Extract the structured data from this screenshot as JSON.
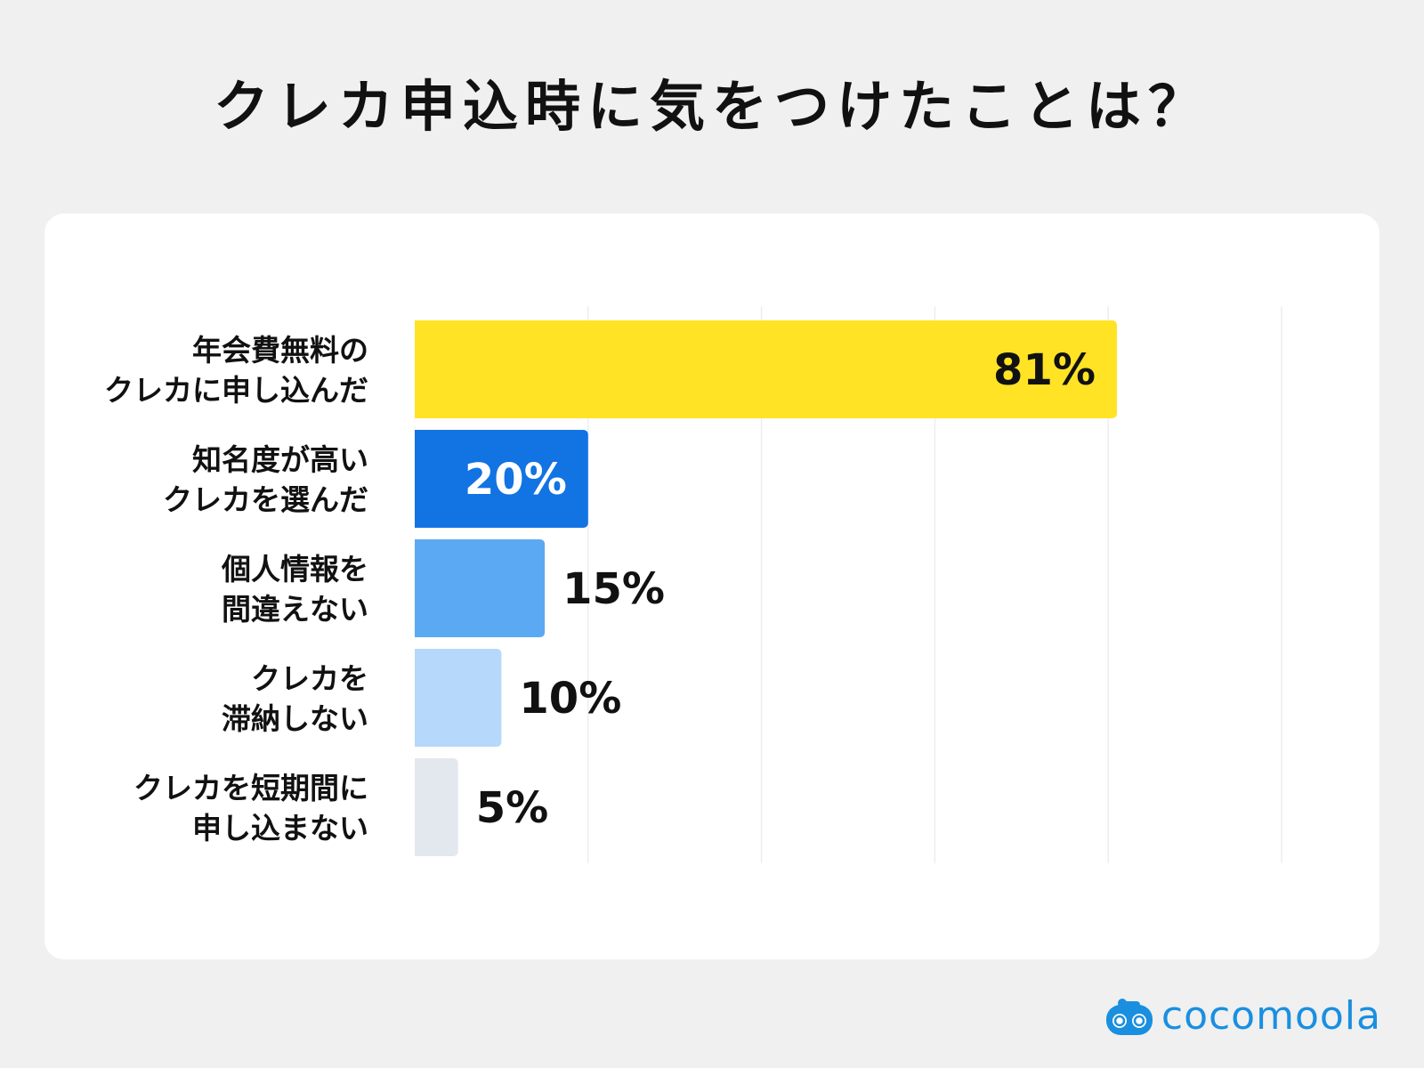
{
  "chart_data": {
    "type": "bar",
    "orientation": "horizontal",
    "title": "クレカ申込時に気をつけたことは？",
    "categories": [
      [
        "年会費無料の",
        "クレカに申し込んだ"
      ],
      [
        "知名度が高い",
        "クレカを選んだ"
      ],
      [
        "個人情報を",
        "間違えない"
      ],
      [
        "クレカを",
        "滞納しない"
      ],
      [
        "クレカを短期間に",
        "申し込まない"
      ]
    ],
    "values": [
      81,
      20,
      15,
      10,
      5
    ],
    "value_labels": [
      "81%",
      "20%",
      "15%",
      "10%",
      "5%"
    ],
    "bar_colors": [
      "#ffe324",
      "#1273e3",
      "#5ca9f3",
      "#b6d8fa",
      "#e3e8ef"
    ],
    "value_label_colors": [
      "#111111",
      "#ffffff",
      "#111111",
      "#111111",
      "#111111"
    ],
    "value_label_position": [
      "inside",
      "inside",
      "outside",
      "outside",
      "outside"
    ],
    "xlim": [
      0,
      100
    ],
    "gridlines": [
      20,
      40,
      60,
      80,
      100
    ],
    "grid": true,
    "legend": false
  },
  "brand": {
    "logo_name": "cocomoola-logo-icon",
    "name": "cocomoola",
    "color": "#1a8fe0"
  }
}
